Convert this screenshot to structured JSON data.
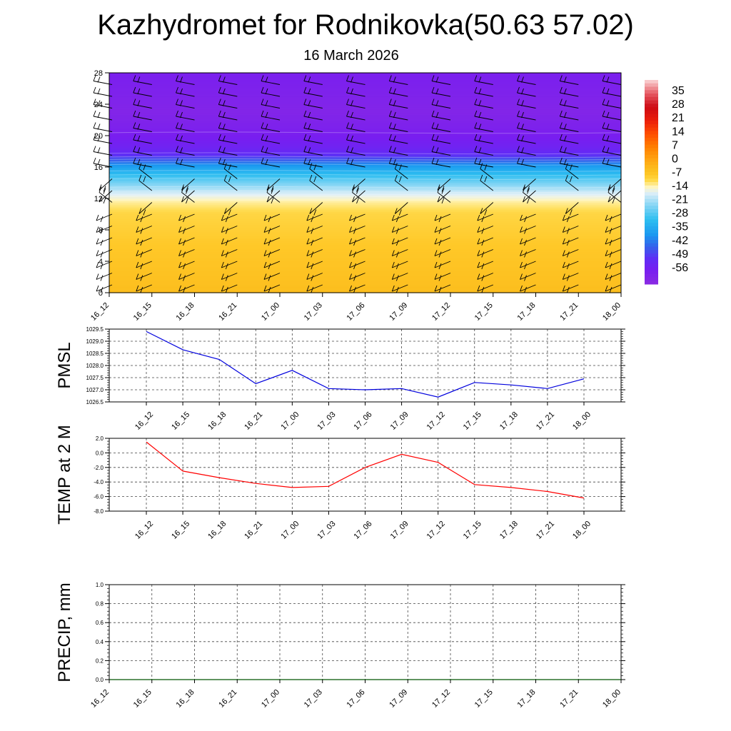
{
  "title": "Kazhydromet for Rodnikovka(50.63 57.02)",
  "subtitle": "16 March 2026",
  "colors": {
    "pmsl_line": "#0000dd",
    "temp_line": "#ff0000",
    "precip_line": "#005500",
    "grid": "#444444",
    "barb": "#000000"
  },
  "chart_data": [
    {
      "type": "heatmap",
      "name": "vertical-section",
      "x_tick_labels": [
        "16_12",
        "16_15",
        "16_18",
        "16_21",
        "17_00",
        "17_03",
        "17_06",
        "17_09",
        "17_12",
        "17_15",
        "17_18",
        "17_21",
        "18_00"
      ],
      "y_tick_labels": [
        "0",
        "4",
        "8",
        "12",
        "16",
        "20",
        "24",
        "28"
      ],
      "ylim": [
        0,
        28
      ],
      "colorbar_labels": [
        "35",
        "28",
        "21",
        "14",
        "7",
        "0",
        "-7",
        "-14",
        "-21",
        "-28",
        "-35",
        "-42",
        "-49",
        "-56"
      ],
      "colorbar_range": [
        -63,
        42
      ],
      "temperature_profile": [
        {
          "level": 0,
          "value": -4
        },
        {
          "level": 4,
          "value": -6
        },
        {
          "level": 8,
          "value": -8
        },
        {
          "level": 10,
          "value": -9
        },
        {
          "level": 11.5,
          "value": -12
        },
        {
          "level": 12.5,
          "value": -16
        },
        {
          "level": 14,
          "value": -24
        },
        {
          "level": 16,
          "value": -36
        },
        {
          "level": 17.5,
          "value": -50
        },
        {
          "level": 18.5,
          "value": -54
        },
        {
          "level": 21,
          "value": -58
        },
        {
          "level": 23,
          "value": -60
        },
        {
          "level": 26,
          "value": -58
        },
        {
          "level": 28,
          "value": -57
        }
      ],
      "wind_barbs": "shown at every time step and level",
      "grid": false
    },
    {
      "type": "line",
      "name": "pmsl",
      "ylabel": "PMSL",
      "x": [
        "16_12",
        "16_15",
        "16_18",
        "16_21",
        "17_00",
        "17_03",
        "17_06",
        "17_09",
        "17_12",
        "17_15",
        "17_18",
        "17_21",
        "18_00"
      ],
      "series": [
        {
          "values": [
            1029.4,
            1028.65,
            1028.25,
            1027.25,
            1027.8,
            1027.05,
            1027.0,
            1027.05,
            1026.7,
            1027.3,
            1027.2,
            1027.05,
            1027.45
          ]
        }
      ],
      "ylim": [
        1026.5,
        1029.5
      ],
      "y_tick_labels": [
        "1029.5",
        "1029.0",
        "1028.5",
        "1028.0",
        "1027.5",
        "1027.0",
        "1026.5"
      ],
      "grid": true
    },
    {
      "type": "line",
      "name": "temperature",
      "ylabel": "TEMP at 2 M",
      "x": [
        "16_12",
        "16_15",
        "16_18",
        "16_21",
        "17_00",
        "17_03",
        "17_06",
        "17_09",
        "17_12",
        "17_15",
        "17_18",
        "17_21",
        "18_00"
      ],
      "series": [
        {
          "values": [
            1.5,
            -2.5,
            -3.4,
            -4.2,
            -4.75,
            -4.6,
            -2.0,
            -0.2,
            -1.3,
            -4.35,
            -4.75,
            -5.3,
            -6.2
          ]
        }
      ],
      "ylim": [
        -8.0,
        2.0
      ],
      "y_tick_labels": [
        "2.0",
        "0.0",
        "-2.0",
        "-4.0",
        "-6.0",
        "-8.0"
      ],
      "grid": true
    },
    {
      "type": "line",
      "name": "precipitation",
      "ylabel": "PRECIP, mm",
      "x": [
        "16_12",
        "16_15",
        "16_18",
        "16_21",
        "17_00",
        "17_03",
        "17_06",
        "17_09",
        "17_12",
        "17_15",
        "17_18",
        "17_21",
        "18_00"
      ],
      "series": [
        {
          "values": [
            0,
            0,
            0,
            0,
            0,
            0,
            0,
            0,
            0,
            0,
            0,
            0,
            0
          ]
        }
      ],
      "ylim": [
        0.0,
        1.0
      ],
      "y_tick_labels": [
        "1.0",
        "0.8",
        "0.6",
        "0.4",
        "0.2",
        "0.0"
      ],
      "grid": true
    }
  ]
}
